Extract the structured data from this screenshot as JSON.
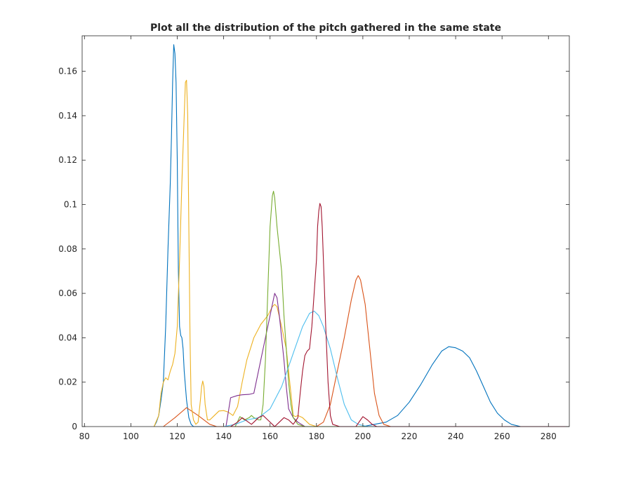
{
  "chart_data": {
    "type": "line",
    "title": "Plot all the distribution of the pitch gathered in the same state",
    "xlabel": "",
    "ylabel": "",
    "xlim": [
      79,
      289
    ],
    "ylim": [
      0,
      0.176
    ],
    "xticks": [
      80,
      100,
      120,
      140,
      160,
      180,
      200,
      220,
      240,
      260,
      280
    ],
    "yticks": [
      0,
      0.02,
      0.04,
      0.06,
      0.08,
      0.1,
      0.12,
      0.14,
      0.16
    ],
    "ytick_labels": [
      "0",
      "0.02",
      "0.04",
      "0.06",
      "0.08",
      "0.1",
      "0.12",
      "0.14",
      "0.16"
    ],
    "grid": false,
    "legend": "none",
    "series": [
      {
        "color": "#0072BD",
        "points": [
          [
            110,
            0
          ],
          [
            111,
            0.002
          ],
          [
            112,
            0.005
          ],
          [
            113,
            0.012
          ],
          [
            114,
            0.02
          ],
          [
            115,
            0.045
          ],
          [
            116,
            0.08
          ],
          [
            117,
            0.11
          ],
          [
            117.5,
            0.13
          ],
          [
            118,
            0.155
          ],
          [
            118.5,
            0.172
          ],
          [
            119,
            0.168
          ],
          [
            119.5,
            0.155
          ],
          [
            120,
            0.12
          ],
          [
            120.5,
            0.07
          ],
          [
            121,
            0.045
          ],
          [
            121.5,
            0.041
          ],
          [
            122,
            0.04
          ],
          [
            122.5,
            0.035
          ],
          [
            123,
            0.025
          ],
          [
            124,
            0.012
          ],
          [
            125,
            0.004
          ],
          [
            126,
            0.001
          ],
          [
            127,
            0
          ],
          [
            130,
            0
          ],
          [
            200,
            0
          ],
          [
            205,
            0.001
          ],
          [
            210,
            0.002
          ],
          [
            215,
            0.005
          ],
          [
            220,
            0.011
          ],
          [
            225,
            0.019
          ],
          [
            230,
            0.028
          ],
          [
            234,
            0.034
          ],
          [
            237,
            0.036
          ],
          [
            240,
            0.0355
          ],
          [
            243,
            0.034
          ],
          [
            246,
            0.031
          ],
          [
            249,
            0.025
          ],
          [
            252,
            0.018
          ],
          [
            255,
            0.011
          ],
          [
            258,
            0.006
          ],
          [
            261,
            0.003
          ],
          [
            264,
            0.001
          ],
          [
            268,
            0
          ],
          [
            289,
            0
          ]
        ]
      },
      {
        "color": "#D95319",
        "points": [
          [
            114,
            0
          ],
          [
            119,
            0.004
          ],
          [
            124,
            0.0085
          ],
          [
            129,
            0.005
          ],
          [
            134,
            0.001
          ],
          [
            137,
            0
          ],
          [
            180,
            0
          ],
          [
            183,
            0.002
          ],
          [
            186,
            0.01
          ],
          [
            189,
            0.025
          ],
          [
            192,
            0.04
          ],
          [
            195,
            0.057
          ],
          [
            197,
            0.066
          ],
          [
            198,
            0.068
          ],
          [
            199,
            0.066
          ],
          [
            201,
            0.055
          ],
          [
            203,
            0.035
          ],
          [
            205,
            0.015
          ],
          [
            207,
            0.005
          ],
          [
            209,
            0.001
          ],
          [
            212,
            0
          ],
          [
            289,
            0
          ]
        ]
      },
      {
        "color": "#EDB120",
        "points": [
          [
            110,
            0
          ],
          [
            112,
            0.005
          ],
          [
            113,
            0.015
          ],
          [
            114,
            0.02
          ],
          [
            115,
            0.022
          ],
          [
            116,
            0.021
          ],
          [
            117,
            0.025
          ],
          [
            118,
            0.028
          ],
          [
            119,
            0.033
          ],
          [
            120,
            0.045
          ],
          [
            121,
            0.075
          ],
          [
            122,
            0.11
          ],
          [
            123,
            0.14
          ],
          [
            123.5,
            0.155
          ],
          [
            124,
            0.156
          ],
          [
            124.5,
            0.14
          ],
          [
            125,
            0.09
          ],
          [
            125.5,
            0.04
          ],
          [
            126,
            0.01
          ],
          [
            127,
            0.003
          ],
          [
            128,
            0.001
          ],
          [
            129,
            0.002
          ],
          [
            130,
            0.012
          ],
          [
            130.5,
            0.018
          ],
          [
            131,
            0.0205
          ],
          [
            131.5,
            0.018
          ],
          [
            132,
            0.01
          ],
          [
            133,
            0.003
          ],
          [
            134,
            0.003
          ],
          [
            136,
            0.005
          ],
          [
            138,
            0.007
          ],
          [
            140,
            0.0072
          ],
          [
            142,
            0.0065
          ],
          [
            144,
            0.005
          ],
          [
            146,
            0.009
          ],
          [
            148,
            0.02
          ],
          [
            150,
            0.03
          ],
          [
            153,
            0.04
          ],
          [
            156,
            0.046
          ],
          [
            159,
            0.05
          ],
          [
            161,
            0.054
          ],
          [
            162,
            0.055
          ],
          [
            163,
            0.054
          ],
          [
            165,
            0.045
          ],
          [
            167,
            0.035
          ],
          [
            169,
            0.015
          ],
          [
            170,
            0.005
          ],
          [
            171,
            0.0045
          ],
          [
            172,
            0.005
          ],
          [
            174,
            0.004
          ],
          [
            177,
            0.001
          ],
          [
            180,
            0
          ],
          [
            289,
            0
          ]
        ]
      },
      {
        "color": "#7E2F8E",
        "points": [
          [
            141,
            0
          ],
          [
            143,
            0.013
          ],
          [
            146,
            0.014
          ],
          [
            148,
            0.0143
          ],
          [
            151,
            0.0145
          ],
          [
            153,
            0.015
          ],
          [
            155,
            0.025
          ],
          [
            157,
            0.035
          ],
          [
            159,
            0.045
          ],
          [
            161,
            0.055
          ],
          [
            162,
            0.06
          ],
          [
            163,
            0.058
          ],
          [
            164,
            0.05
          ],
          [
            165,
            0.04
          ],
          [
            166,
            0.03
          ],
          [
            167,
            0.018
          ],
          [
            168,
            0.008
          ],
          [
            170,
            0.004
          ],
          [
            172,
            0.002
          ],
          [
            175,
            0
          ],
          [
            289,
            0
          ]
        ]
      },
      {
        "color": "#77AC30",
        "points": [
          [
            145,
            0
          ],
          [
            147,
            0.0045
          ],
          [
            149,
            0.003
          ],
          [
            151,
            0.004
          ],
          [
            152,
            0.005
          ],
          [
            153,
            0.004
          ],
          [
            155,
            0.003
          ],
          [
            156,
            0.003
          ],
          [
            157,
            0.01
          ],
          [
            158,
            0.03
          ],
          [
            159,
            0.06
          ],
          [
            160,
            0.09
          ],
          [
            161,
            0.104
          ],
          [
            161.5,
            0.106
          ],
          [
            162,
            0.103
          ],
          [
            163,
            0.09
          ],
          [
            164,
            0.08
          ],
          [
            165,
            0.07
          ],
          [
            166,
            0.05
          ],
          [
            167,
            0.035
          ],
          [
            168,
            0.02
          ],
          [
            169,
            0.01
          ],
          [
            170,
            0.004
          ],
          [
            172,
            0.001
          ],
          [
            175,
            0
          ],
          [
            289,
            0
          ]
        ]
      },
      {
        "color": "#4DBEEE",
        "points": [
          [
            140,
            0
          ],
          [
            145,
            0.001
          ],
          [
            150,
            0.003
          ],
          [
            155,
            0.004
          ],
          [
            160,
            0.008
          ],
          [
            165,
            0.018
          ],
          [
            170,
            0.033
          ],
          [
            174,
            0.045
          ],
          [
            177,
            0.051
          ],
          [
            179,
            0.052
          ],
          [
            181,
            0.05
          ],
          [
            183,
            0.045
          ],
          [
            186,
            0.035
          ],
          [
            189,
            0.022
          ],
          [
            192,
            0.01
          ],
          [
            195,
            0.003
          ],
          [
            198,
            0.001
          ],
          [
            202,
            0
          ],
          [
            289,
            0
          ]
        ]
      },
      {
        "color": "#A2142F",
        "points": [
          [
            143,
            0
          ],
          [
            146,
            0.002
          ],
          [
            148,
            0.004
          ],
          [
            150,
            0.0025
          ],
          [
            152,
            0.001
          ],
          [
            153,
            0.002
          ],
          [
            155,
            0.004
          ],
          [
            157,
            0.005
          ],
          [
            159,
            0.003
          ],
          [
            161,
            0.001
          ],
          [
            162,
            0
          ],
          [
            164,
            0.002
          ],
          [
            166,
            0.004
          ],
          [
            168,
            0.003
          ],
          [
            170,
            0.001
          ],
          [
            172,
            0.004
          ],
          [
            173,
            0.015
          ],
          [
            174,
            0.025
          ],
          [
            175,
            0.032
          ],
          [
            176,
            0.034
          ],
          [
            177,
            0.035
          ],
          [
            177.5,
            0.04
          ],
          [
            178,
            0.045
          ],
          [
            179,
            0.06
          ],
          [
            180,
            0.075
          ],
          [
            180.5,
            0.09
          ],
          [
            181,
            0.097
          ],
          [
            181.5,
            0.1005
          ],
          [
            182,
            0.099
          ],
          [
            182.5,
            0.09
          ],
          [
            183,
            0.075
          ],
          [
            184,
            0.045
          ],
          [
            185,
            0.02
          ],
          [
            186,
            0.005
          ],
          [
            187,
            0.001
          ],
          [
            190,
            0
          ],
          [
            197,
            0
          ],
          [
            199,
            0.003
          ],
          [
            200,
            0.0045
          ],
          [
            202,
            0.003
          ],
          [
            204,
            0.001
          ],
          [
            206,
            0
          ],
          [
            289,
            0
          ]
        ]
      }
    ]
  }
}
